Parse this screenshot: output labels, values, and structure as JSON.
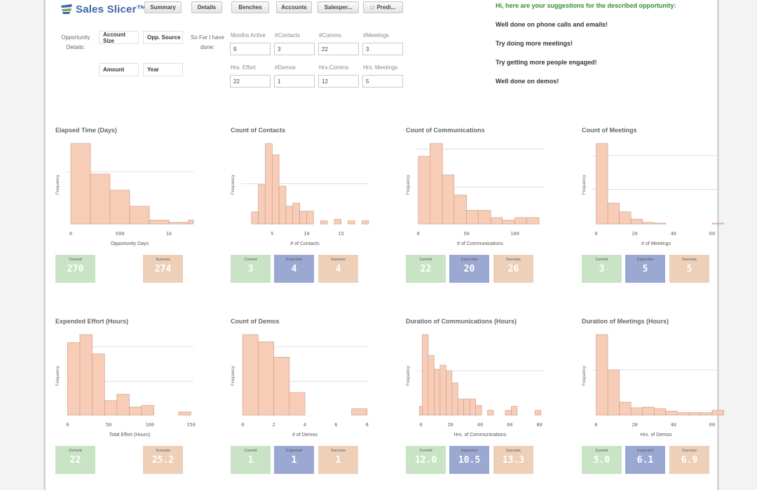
{
  "app": {
    "title": "Sales Slicer™"
  },
  "tabs": [
    {
      "label": "Summary"
    },
    {
      "label": "Details"
    },
    {
      "label": "Benches"
    },
    {
      "label": "Accounts"
    },
    {
      "label": "Salesper..."
    },
    {
      "label": "Predi..."
    }
  ],
  "opportunity": {
    "label_line1": "Opportunity",
    "label_line2": "Details:",
    "dims": [
      "Account Size",
      "Opp. Source",
      "Amount",
      "Year"
    ]
  },
  "sofar": {
    "label_line1": "So Far I have",
    "label_line2": "done:",
    "fields": [
      {
        "label": "Months Active",
        "value": "9"
      },
      {
        "label": "#Contacts",
        "value": "3"
      },
      {
        "label": "#Comms",
        "value": "22"
      },
      {
        "label": "#Meetings",
        "value": "3"
      },
      {
        "label": "Hrs. Effort",
        "value": "22"
      },
      {
        "label": "#Demos",
        "value": "1"
      },
      {
        "label": "Hrs.Comms",
        "value": "12"
      },
      {
        "label": "Hrs. Meetings",
        "value": "5"
      }
    ]
  },
  "suggestions": {
    "heading": "Hi, here are your suggestions for the described opportunity:",
    "items": [
      "Well done on phone calls and emails!",
      "Try doing more meetings!",
      "Try getting more people engaged!",
      "Well done on demos!"
    ]
  },
  "colors": {
    "bar_fill": "#f8cdb8",
    "bar_stroke": "#c79882",
    "current": "#c8e4c4",
    "expected": "#9ba8d2",
    "success": "#eecfb8"
  },
  "charts": [
    {
      "title": "Elapsed Time (Days)",
      "ylabel": "Frequency",
      "xlabel": "Opportunity Days",
      "ticks": [
        {
          "v": 0,
          "t": "0"
        },
        {
          "v": 500,
          "t": "500"
        },
        {
          "v": 1000,
          "t": "1k"
        }
      ],
      "xmin": -50,
      "xmax": 1250,
      "ymax": 1,
      "bins": [
        {
          "x0": 0,
          "x1": 200,
          "f": 1.0
        },
        {
          "x0": 200,
          "x1": 400,
          "f": 0.62
        },
        {
          "x0": 400,
          "x1": 600,
          "f": 0.42
        },
        {
          "x0": 600,
          "x1": 800,
          "f": 0.22
        },
        {
          "x0": 800,
          "x1": 1000,
          "f": 0.05
        },
        {
          "x0": 1000,
          "x1": 1200,
          "f": 0.02
        },
        {
          "x0": 1200,
          "x1": 1250,
          "f": 0.05
        }
      ],
      "grid": [
        0.65
      ],
      "kpis": [
        {
          "kind": "cur",
          "label": "Current",
          "value": "270"
        },
        {
          "kind": "none"
        },
        {
          "kind": "suc",
          "label": "Success",
          "value": "274"
        }
      ]
    },
    {
      "title": "Count of Contacts",
      "ylabel": "Frequency",
      "xlabel": "# of Contacts",
      "ticks": [
        {
          "v": 5,
          "t": "5"
        },
        {
          "v": 10,
          "t": "10"
        },
        {
          "v": 15,
          "t": "15"
        }
      ],
      "xmin": 0.5,
      "xmax": 19,
      "ymax": 1,
      "bins": [
        {
          "x0": 2,
          "x1": 3,
          "f": 0.15
        },
        {
          "x0": 3,
          "x1": 4,
          "f": 0.49
        },
        {
          "x0": 4,
          "x1": 5,
          "f": 1.0
        },
        {
          "x0": 5,
          "x1": 6,
          "f": 0.86
        },
        {
          "x0": 6,
          "x1": 7,
          "f": 0.47
        },
        {
          "x0": 7,
          "x1": 8,
          "f": 0.22
        },
        {
          "x0": 8,
          "x1": 9,
          "f": 0.26
        },
        {
          "x0": 9,
          "x1": 10,
          "f": 0.16
        },
        {
          "x0": 10,
          "x1": 11,
          "f": 0.16
        },
        {
          "x0": 12,
          "x1": 13,
          "f": 0.04
        },
        {
          "x0": 14,
          "x1": 15,
          "f": 0.06
        },
        {
          "x0": 16,
          "x1": 17,
          "f": 0.04
        },
        {
          "x0": 18,
          "x1": 19,
          "f": 0.04
        }
      ],
      "grid": [
        0.5
      ],
      "kpis": [
        {
          "kind": "cur",
          "label": "Current",
          "value": "3"
        },
        {
          "kind": "exp",
          "label": "Expected",
          "value": "4"
        },
        {
          "kind": "suc",
          "label": "Success",
          "value": "4"
        }
      ]
    },
    {
      "title": "Count of Communications",
      "ylabel": "Frequency",
      "xlabel": "# of Communications",
      "ticks": [
        {
          "v": 0,
          "t": "0"
        },
        {
          "v": 50,
          "t": "50"
        },
        {
          "v": 100,
          "t": "100"
        }
      ],
      "xmin": -2,
      "xmax": 130,
      "ymax": 1,
      "bins": [
        {
          "x0": 0,
          "x1": 12,
          "f": 0.84
        },
        {
          "x0": 12,
          "x1": 25,
          "f": 1.0
        },
        {
          "x0": 25,
          "x1": 37,
          "f": 0.61
        },
        {
          "x0": 37,
          "x1": 50,
          "f": 0.36
        },
        {
          "x0": 50,
          "x1": 62,
          "f": 0.17
        },
        {
          "x0": 62,
          "x1": 75,
          "f": 0.17
        },
        {
          "x0": 75,
          "x1": 87,
          "f": 0.08
        },
        {
          "x0": 87,
          "x1": 100,
          "f": 0.05
        },
        {
          "x0": 100,
          "x1": 112,
          "f": 0.08
        },
        {
          "x0": 112,
          "x1": 125,
          "f": 0.08
        }
      ],
      "grid": [
        0.93,
        0.46
      ],
      "kpis": [
        {
          "kind": "cur",
          "label": "Current",
          "value": "22"
        },
        {
          "kind": "exp",
          "label": "Expected",
          "value": "20"
        },
        {
          "kind": "suc",
          "label": "Success",
          "value": "26"
        }
      ]
    },
    {
      "title": "Count of Meetings",
      "ylabel": "Frequency",
      "xlabel": "# of Meetings",
      "ticks": [
        {
          "v": 0,
          "t": "0"
        },
        {
          "v": 20,
          "t": "20"
        },
        {
          "v": 40,
          "t": "40"
        },
        {
          "v": 60,
          "t": "60"
        }
      ],
      "xmin": -2,
      "xmax": 64,
      "ymax": 1,
      "bins": [
        {
          "x0": 0,
          "x1": 6,
          "f": 1.0
        },
        {
          "x0": 6,
          "x1": 12,
          "f": 0.26
        },
        {
          "x0": 12,
          "x1": 18,
          "f": 0.15
        },
        {
          "x0": 18,
          "x1": 24,
          "f": 0.06
        },
        {
          "x0": 24,
          "x1": 30,
          "f": 0.02
        },
        {
          "x0": 30,
          "x1": 36,
          "f": 0.01
        },
        {
          "x0": 60,
          "x1": 66,
          "f": 0.01
        }
      ],
      "grid": [
        0.85,
        0.43
      ],
      "kpis": [
        {
          "kind": "cur",
          "label": "Current",
          "value": "3"
        },
        {
          "kind": "exp",
          "label": "Expected",
          "value": "5"
        },
        {
          "kind": "suc",
          "label": "Success",
          "value": "5"
        }
      ]
    },
    {
      "title": "Expended Effort (Hours)",
      "ylabel": "Frequency",
      "xlabel": "Total Effort (Hours)",
      "ticks": [
        {
          "v": 0,
          "t": "0"
        },
        {
          "v": 50,
          "t": "50"
        },
        {
          "v": 100,
          "t": "100"
        },
        {
          "v": 150,
          "t": "150"
        }
      ],
      "xmin": -2,
      "xmax": 153,
      "ymax": 1,
      "bins": [
        {
          "x0": 0,
          "x1": 15,
          "f": 0.9
        },
        {
          "x0": 15,
          "x1": 30,
          "f": 1.0
        },
        {
          "x0": 30,
          "x1": 45,
          "f": 0.76
        },
        {
          "x0": 45,
          "x1": 60,
          "f": 0.18
        },
        {
          "x0": 60,
          "x1": 75,
          "f": 0.26
        },
        {
          "x0": 75,
          "x1": 90,
          "f": 0.1
        },
        {
          "x0": 90,
          "x1": 105,
          "f": 0.12
        },
        {
          "x0": 135,
          "x1": 150,
          "f": 0.04
        }
      ],
      "grid": [
        0.85,
        0.42
      ],
      "kpis": [
        {
          "kind": "cur",
          "label": "Current",
          "value": "22"
        },
        {
          "kind": "none"
        },
        {
          "kind": "suc",
          "label": "Success",
          "value": "25.2"
        }
      ]
    },
    {
      "title": "Count of Demos",
      "ylabel": "Frequency",
      "xlabel": "# of Demos",
      "ticks": [
        {
          "v": 0,
          "t": "0"
        },
        {
          "v": 2,
          "t": "2"
        },
        {
          "v": 4,
          "t": "4"
        },
        {
          "v": 6,
          "t": "6"
        },
        {
          "v": 8,
          "t": "8"
        }
      ],
      "xmin": -0.1,
      "xmax": 8.1,
      "ymax": 1,
      "bins": [
        {
          "x0": 0,
          "x1": 1,
          "f": 1.0
        },
        {
          "x0": 1,
          "x1": 2,
          "f": 0.91
        },
        {
          "x0": 2,
          "x1": 3,
          "f": 0.72
        },
        {
          "x0": 3,
          "x1": 4,
          "f": 0.28
        },
        {
          "x0": 7,
          "x1": 8,
          "f": 0.08
        }
      ],
      "grid": [
        0.85,
        0.42
      ],
      "kpis": [
        {
          "kind": "cur",
          "label": "Current",
          "value": "1"
        },
        {
          "kind": "exp",
          "label": "Expected",
          "value": "1"
        },
        {
          "kind": "suc",
          "label": "Success",
          "value": "1"
        }
      ]
    },
    {
      "title": "Duration of Communications (Hours)",
      "ylabel": "Frequency",
      "xlabel": "Hrs. of Communications",
      "ticks": [
        {
          "v": 0,
          "t": "0"
        },
        {
          "v": 20,
          "t": "20"
        },
        {
          "v": 40,
          "t": "40"
        },
        {
          "v": 60,
          "t": "60"
        },
        {
          "v": 80,
          "t": "80"
        }
      ],
      "xmin": -3,
      "xmax": 83,
      "ymax": 1,
      "bins": [
        {
          "x0": -1,
          "x1": 1,
          "f": 0.11
        },
        {
          "x0": 1,
          "x1": 5,
          "f": 1.0
        },
        {
          "x0": 5,
          "x1": 9,
          "f": 0.74
        },
        {
          "x0": 9,
          "x1": 13,
          "f": 0.57
        },
        {
          "x0": 13,
          "x1": 17,
          "f": 0.62
        },
        {
          "x0": 17,
          "x1": 21,
          "f": 0.55
        },
        {
          "x0": 21,
          "x1": 25,
          "f": 0.4
        },
        {
          "x0": 25,
          "x1": 29,
          "f": 0.2
        },
        {
          "x0": 29,
          "x1": 33,
          "f": 0.2
        },
        {
          "x0": 33,
          "x1": 37,
          "f": 0.2
        },
        {
          "x0": 37,
          "x1": 41,
          "f": 0.12
        },
        {
          "x0": 45,
          "x1": 49,
          "f": 0.06
        },
        {
          "x0": 57,
          "x1": 61,
          "f": 0.06
        },
        {
          "x0": 61,
          "x1": 65,
          "f": 0.11
        },
        {
          "x0": 77,
          "x1": 81,
          "f": 0.06
        }
      ],
      "grid": [
        0.55
      ],
      "kpis": [
        {
          "kind": "cur",
          "label": "Current",
          "value": "12.0"
        },
        {
          "kind": "exp",
          "label": "Expected",
          "value": "10.5"
        },
        {
          "kind": "suc",
          "label": "Success",
          "value": "13.3"
        }
      ]
    },
    {
      "title": "Duration of Meetings (Hours)",
      "ylabel": "Frequency",
      "xlabel": "Hrs. of Demos",
      "ticks": [
        {
          "v": 0,
          "t": "0"
        },
        {
          "v": 20,
          "t": "20"
        },
        {
          "v": 40,
          "t": "40"
        },
        {
          "v": 60,
          "t": "60"
        }
      ],
      "xmin": -2,
      "xmax": 64,
      "ymax": 1,
      "bins": [
        {
          "x0": 0,
          "x1": 6,
          "f": 1.0
        },
        {
          "x0": 6,
          "x1": 12,
          "f": 0.56
        },
        {
          "x0": 12,
          "x1": 18,
          "f": 0.16
        },
        {
          "x0": 18,
          "x1": 24,
          "f": 0.09
        },
        {
          "x0": 24,
          "x1": 30,
          "f": 0.1
        },
        {
          "x0": 30,
          "x1": 36,
          "f": 0.08
        },
        {
          "x0": 36,
          "x1": 42,
          "f": 0.05
        },
        {
          "x0": 42,
          "x1": 48,
          "f": 0.03
        },
        {
          "x0": 48,
          "x1": 54,
          "f": 0.03
        },
        {
          "x0": 54,
          "x1": 60,
          "f": 0.03
        },
        {
          "x0": 60,
          "x1": 66,
          "f": 0.06
        }
      ],
      "grid": [
        0.56
      ],
      "kpis": [
        {
          "kind": "cur",
          "label": "Current",
          "value": "5.0"
        },
        {
          "kind": "exp",
          "label": "Expected",
          "value": "6.1"
        },
        {
          "kind": "suc",
          "label": "Success",
          "value": "6.9"
        }
      ]
    }
  ]
}
